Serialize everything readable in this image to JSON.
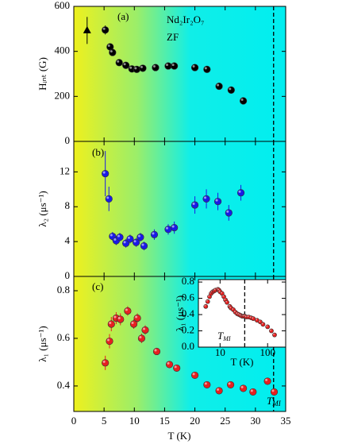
{
  "chart_data": [
    {
      "type": "scatter",
      "panel_label": "(a)",
      "annotations": [
        "Nd₂Ir₂O₇",
        "ZF"
      ],
      "ylabel": "Hᵢₙₜ (G)",
      "xlim": [
        0,
        35
      ],
      "ylim": [
        0,
        600
      ],
      "yticks": [
        0,
        200,
        400,
        600
      ],
      "vline": 33,
      "series": [
        {
          "marker": "triangle",
          "color": "#000000",
          "x": [
            2.2
          ],
          "values": [
            493
          ],
          "errors": [
            60
          ]
        },
        {
          "marker": "circle",
          "color": "#000000",
          "x": [
            5.2,
            6,
            6.4,
            7.5,
            8.6,
            9.6,
            10.4,
            11.4,
            13.5,
            15.6,
            16.6,
            20,
            22,
            24,
            26,
            28
          ],
          "values": [
            495,
            420,
            395,
            350,
            338,
            322,
            320,
            325,
            328,
            335,
            335,
            328,
            320,
            245,
            228,
            180
          ],
          "errors": [
            20,
            15,
            15,
            12,
            10,
            10,
            10,
            10,
            10,
            10,
            10,
            10,
            12,
            15,
            15,
            15
          ]
        }
      ]
    },
    {
      "type": "scatter",
      "panel_label": "(b)",
      "ylabel": "λ₂ (μs⁻¹)",
      "xlim": [
        0,
        35
      ],
      "ylim": [
        0,
        15.5
      ],
      "yticks": [
        0,
        4,
        8,
        12
      ],
      "vline": 33,
      "series": [
        {
          "marker": "circle",
          "color": "#1a1ae6",
          "x": [
            5.2,
            5.8,
            6.4,
            7,
            7.6,
            8.6,
            9.3,
            10.3,
            11,
            11.6,
            13.3,
            15.6,
            16.6,
            20,
            21.9,
            23.8,
            25.6,
            27.6
          ],
          "values": [
            11.8,
            8.9,
            4.6,
            4.1,
            4.5,
            3.8,
            4.3,
            3.9,
            4.5,
            3.5,
            4.8,
            5.4,
            5.6,
            8.2,
            8.9,
            8.6,
            7.3,
            9.6
          ],
          "errors": [
            2.6,
            1.4,
            0.5,
            0.5,
            0.5,
            0.5,
            0.5,
            0.5,
            0.5,
            0.5,
            0.6,
            0.6,
            0.7,
            1.0,
            1.1,
            1.0,
            0.9,
            0.9
          ]
        }
      ]
    },
    {
      "type": "scatter",
      "panel_label": "(c)",
      "ylabel": "λ₁ (μs⁻¹)",
      "xlabel": "T (K)",
      "marker_label": {
        "main": "T",
        "sub": "MI"
      },
      "xlim": [
        0,
        35
      ],
      "xticks": [
        0,
        5,
        10,
        15,
        20,
        25,
        30,
        35
      ],
      "ylim": [
        0.293,
        0.86
      ],
      "yticks": [
        0.4,
        0.6,
        0.8
      ],
      "vline": 33,
      "series": [
        {
          "marker": "circle",
          "color": "#e62020",
          "x": [
            5.2,
            5.9,
            6.2,
            7,
            7.7,
            8.9,
            9.9,
            10.5,
            11.2,
            11.8,
            13.7,
            15.8,
            17,
            20,
            22,
            24,
            25.9,
            28,
            29.6,
            32,
            33.1
          ],
          "values": [
            0.497,
            0.588,
            0.66,
            0.685,
            0.68,
            0.715,
            0.66,
            0.685,
            0.6,
            0.635,
            0.545,
            0.49,
            0.475,
            0.445,
            0.405,
            0.38,
            0.405,
            0.39,
            0.375,
            0.42,
            0.375
          ],
          "errors": [
            0.03,
            0.03,
            0.03,
            0.025,
            0.025,
            0.02,
            0.02,
            0.02,
            0.02,
            0.02,
            0.015,
            0.01,
            0.01,
            0.01,
            0.01,
            0.01,
            0.01,
            0.01,
            0.01,
            0.01,
            0.015
          ]
        }
      ]
    },
    {
      "type": "scatter",
      "inset": true,
      "log_x": true,
      "ylabel": "λ₁ (μs⁻¹)",
      "xlabel": "T (K)",
      "marker_label": {
        "main": "T",
        "sub": "MI"
      },
      "xlim": [
        3.5,
        240
      ],
      "xticks": [
        10,
        100
      ],
      "ylim": [
        0,
        0.83
      ],
      "yticks": [
        {
          "value": 0,
          "label": "0.0"
        },
        0.2,
        0.4,
        0.6,
        0.8
      ],
      "vline": 33,
      "series": [
        {
          "marker": "circle",
          "color": "#e62020",
          "x": [
            5,
            5.5,
            6,
            6.5,
            7,
            7.5,
            8,
            9,
            9.5,
            10,
            11,
            12,
            13,
            14,
            16,
            17,
            19,
            21,
            23,
            25,
            27,
            29,
            31,
            33,
            36,
            40,
            45,
            50,
            60,
            70,
            80,
            100,
            120,
            140
          ],
          "values": [
            0.5,
            0.56,
            0.62,
            0.66,
            0.68,
            0.69,
            0.7,
            0.71,
            0.7,
            0.68,
            0.66,
            0.62,
            0.58,
            0.55,
            0.5,
            0.48,
            0.46,
            0.43,
            0.41,
            0.4,
            0.39,
            0.38,
            0.38,
            0.38,
            0.37,
            0.37,
            0.36,
            0.35,
            0.33,
            0.31,
            0.28,
            0.25,
            0.2,
            0.15
          ]
        }
      ]
    }
  ]
}
